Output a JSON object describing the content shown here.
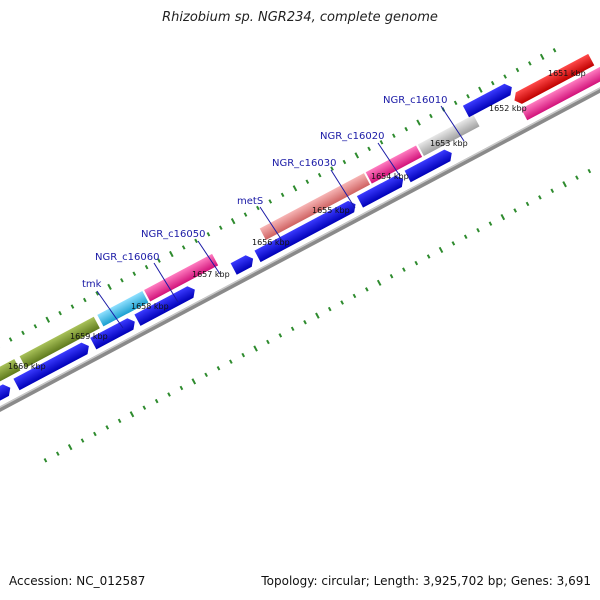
{
  "title": "Rhizobium sp. NGR234, complete genome",
  "footer": {
    "accession": "Accession: NC_012587",
    "summary": "Topology: circular; Length: 3,925,702 bp; Genes: 3,691"
  },
  "ticks": [
    "1651 kbp",
    "1652 kbp",
    "1653 kbp",
    "1654 kbp",
    "1655 kbp",
    "1656 kbp",
    "1657 kbp",
    "1658 kbp",
    "1659 kbp",
    "1660 kbp"
  ],
  "gene_labels": [
    "NGR_c16010",
    "NGR_c16020",
    "NGR_c16030",
    "metS",
    "NGR_c16050",
    "NGR_c16060",
    "tmk"
  ],
  "colors": {
    "olive": "#7a9a2a",
    "cyan": "#2ab8e6",
    "magenta": "#e8248c",
    "salmon": "#e27d7d",
    "grey": "#bdbdbd",
    "red": "#e60000",
    "blue": "#0000e0",
    "backbone": "#6b6b6b",
    "tick": "#2e8b2e"
  }
}
